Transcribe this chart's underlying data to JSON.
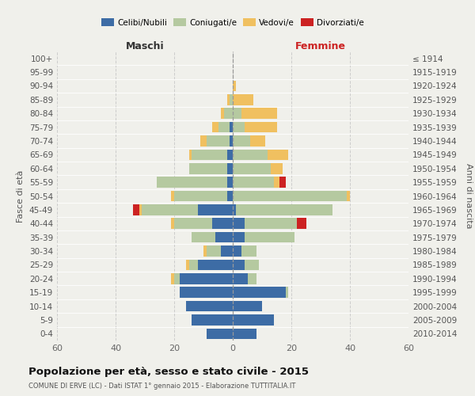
{
  "age_groups": [
    "0-4",
    "5-9",
    "10-14",
    "15-19",
    "20-24",
    "25-29",
    "30-34",
    "35-39",
    "40-44",
    "45-49",
    "50-54",
    "55-59",
    "60-64",
    "65-69",
    "70-74",
    "75-79",
    "80-84",
    "85-89",
    "90-94",
    "95-99",
    "100+"
  ],
  "birth_years": [
    "2010-2014",
    "2005-2009",
    "2000-2004",
    "1995-1999",
    "1990-1994",
    "1985-1989",
    "1980-1984",
    "1975-1979",
    "1970-1974",
    "1965-1969",
    "1960-1964",
    "1955-1959",
    "1950-1954",
    "1945-1949",
    "1940-1944",
    "1935-1939",
    "1930-1934",
    "1925-1929",
    "1920-1924",
    "1915-1919",
    "≤ 1914"
  ],
  "maschi": {
    "celibi": [
      9,
      14,
      16,
      18,
      18,
      12,
      4,
      6,
      7,
      12,
      2,
      2,
      2,
      2,
      1,
      1,
      0,
      0,
      0,
      0,
      0
    ],
    "coniugati": [
      0,
      0,
      0,
      0,
      2,
      3,
      5,
      8,
      13,
      19,
      18,
      24,
      13,
      12,
      8,
      4,
      3,
      1,
      0,
      0,
      0
    ],
    "vedovi": [
      0,
      0,
      0,
      0,
      1,
      1,
      1,
      0,
      1,
      1,
      1,
      0,
      0,
      1,
      2,
      2,
      1,
      1,
      0,
      0,
      0
    ],
    "divorziati": [
      0,
      0,
      0,
      0,
      0,
      0,
      0,
      0,
      0,
      2,
      0,
      0,
      0,
      0,
      0,
      0,
      0,
      0,
      0,
      0,
      0
    ]
  },
  "femmine": {
    "nubili": [
      8,
      14,
      10,
      18,
      5,
      4,
      3,
      4,
      4,
      1,
      0,
      0,
      0,
      0,
      0,
      0,
      0,
      0,
      0,
      0,
      0
    ],
    "coniugate": [
      0,
      0,
      0,
      1,
      3,
      5,
      5,
      17,
      18,
      33,
      39,
      14,
      13,
      12,
      6,
      4,
      3,
      0,
      0,
      0,
      0
    ],
    "vedove": [
      0,
      0,
      0,
      0,
      0,
      0,
      0,
      0,
      0,
      0,
      1,
      2,
      4,
      7,
      5,
      11,
      12,
      7,
      1,
      0,
      0
    ],
    "divorziate": [
      0,
      0,
      0,
      0,
      0,
      0,
      0,
      0,
      3,
      0,
      0,
      2,
      0,
      0,
      0,
      0,
      0,
      0,
      0,
      0,
      0
    ]
  },
  "colors": {
    "celibi_nubili": "#3d6ca5",
    "coniugati": "#b5c9a0",
    "vedovi": "#f0c060",
    "divorziati": "#cc2222"
  },
  "xlim": 60,
  "title": "Popolazione per età, sesso e stato civile - 2015",
  "subtitle": "COMUNE DI ERVE (LC) - Dati ISTAT 1° gennaio 2015 - Elaborazione TUTTITALIA.IT",
  "ylabel_left": "Fasce di età",
  "ylabel_right": "Anni di nascita",
  "xlabel_left": "Maschi",
  "xlabel_right": "Femmine",
  "background_color": "#f0f0eb",
  "grid_color": "#cccccc"
}
